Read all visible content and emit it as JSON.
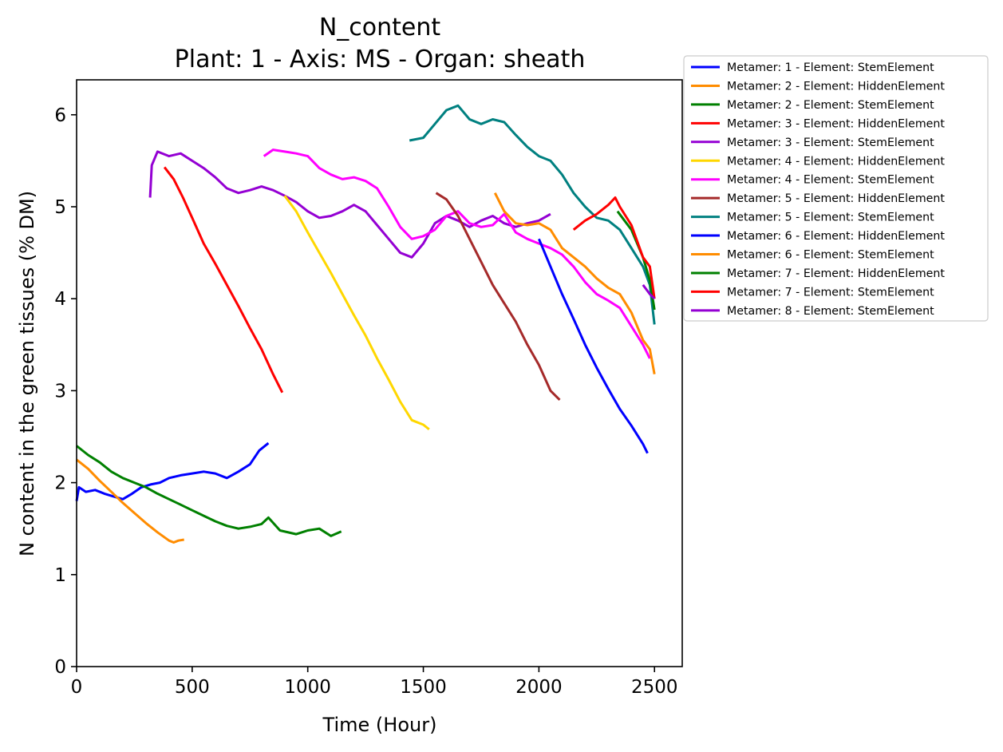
{
  "chart_data": {
    "type": "line",
    "title": "N_content",
    "subtitle": "Plant: 1 - Axis: MS - Organ: sheath",
    "xlabel": "Time (Hour)",
    "ylabel": "N content in the green tissues (% DM)",
    "xlim": [
      0,
      2620
    ],
    "ylim": [
      0,
      6.38
    ],
    "xticks": [
      0,
      500,
      1000,
      1500,
      2000,
      2500
    ],
    "yticks": [
      0,
      1,
      2,
      3,
      4,
      5,
      6
    ],
    "grid": false,
    "legend_position": "outside-right-top",
    "series": [
      {
        "name": "Metamer: 1 - Element: StemElement",
        "color": "#0000ff",
        "points": [
          [
            0,
            1.8
          ],
          [
            10,
            1.95
          ],
          [
            40,
            1.9
          ],
          [
            80,
            1.92
          ],
          [
            120,
            1.88
          ],
          [
            160,
            1.85
          ],
          [
            200,
            1.82
          ],
          [
            240,
            1.88
          ],
          [
            280,
            1.95
          ],
          [
            320,
            1.98
          ],
          [
            360,
            2.0
          ],
          [
            400,
            2.05
          ],
          [
            450,
            2.08
          ],
          [
            500,
            2.1
          ],
          [
            550,
            2.12
          ],
          [
            600,
            2.1
          ],
          [
            650,
            2.05
          ],
          [
            700,
            2.12
          ],
          [
            750,
            2.2
          ],
          [
            790,
            2.35
          ],
          [
            830,
            2.43
          ]
        ]
      },
      {
        "name": "Metamer: 2 - Element: HiddenElement",
        "color": "#ff8c00",
        "points": [
          [
            0,
            2.25
          ],
          [
            50,
            2.15
          ],
          [
            100,
            2.02
          ],
          [
            150,
            1.9
          ],
          [
            200,
            1.78
          ],
          [
            250,
            1.67
          ],
          [
            300,
            1.56
          ],
          [
            350,
            1.46
          ],
          [
            400,
            1.37
          ],
          [
            420,
            1.35
          ],
          [
            440,
            1.37
          ],
          [
            465,
            1.38
          ]
        ]
      },
      {
        "name": "Metamer: 2 - Element: StemElement",
        "color": "#008000",
        "points": [
          [
            0,
            2.4
          ],
          [
            50,
            2.3
          ],
          [
            100,
            2.22
          ],
          [
            150,
            2.12
          ],
          [
            200,
            2.05
          ],
          [
            250,
            2.0
          ],
          [
            300,
            1.95
          ],
          [
            350,
            1.88
          ],
          [
            400,
            1.82
          ],
          [
            450,
            1.76
          ],
          [
            500,
            1.7
          ],
          [
            550,
            1.64
          ],
          [
            600,
            1.58
          ],
          [
            650,
            1.53
          ],
          [
            700,
            1.5
          ],
          [
            750,
            1.52
          ],
          [
            800,
            1.55
          ],
          [
            830,
            1.62
          ],
          [
            880,
            1.48
          ],
          [
            950,
            1.44
          ],
          [
            1000,
            1.48
          ],
          [
            1050,
            1.5
          ],
          [
            1100,
            1.42
          ],
          [
            1145,
            1.47
          ]
        ]
      },
      {
        "name": "Metamer: 3 - Element: HiddenElement",
        "color": "#ff0000",
        "points": [
          [
            380,
            5.43
          ],
          [
            420,
            5.3
          ],
          [
            460,
            5.1
          ],
          [
            500,
            4.88
          ],
          [
            550,
            4.6
          ],
          [
            600,
            4.38
          ],
          [
            650,
            4.15
          ],
          [
            700,
            3.92
          ],
          [
            750,
            3.68
          ],
          [
            800,
            3.45
          ],
          [
            850,
            3.18
          ],
          [
            890,
            2.98
          ]
        ]
      },
      {
        "name": "Metamer: 3 - Element: StemElement",
        "color": "#9400d3",
        "points": [
          [
            318,
            5.1
          ],
          [
            325,
            5.45
          ],
          [
            350,
            5.6
          ],
          [
            400,
            5.55
          ],
          [
            450,
            5.58
          ],
          [
            500,
            5.5
          ],
          [
            550,
            5.42
          ],
          [
            600,
            5.32
          ],
          [
            650,
            5.2
          ],
          [
            700,
            5.15
          ],
          [
            750,
            5.18
          ],
          [
            800,
            5.22
          ],
          [
            850,
            5.18
          ],
          [
            900,
            5.12
          ],
          [
            950,
            5.05
          ],
          [
            1000,
            4.95
          ],
          [
            1050,
            4.88
          ],
          [
            1100,
            4.9
          ],
          [
            1150,
            4.95
          ],
          [
            1200,
            5.02
          ],
          [
            1250,
            4.95
          ],
          [
            1300,
            4.8
          ],
          [
            1350,
            4.65
          ],
          [
            1400,
            4.5
          ],
          [
            1450,
            4.45
          ],
          [
            1500,
            4.6
          ],
          [
            1550,
            4.82
          ],
          [
            1600,
            4.9
          ],
          [
            1650,
            4.85
          ],
          [
            1700,
            4.78
          ],
          [
            1750,
            4.85
          ],
          [
            1800,
            4.9
          ],
          [
            1850,
            4.82
          ],
          [
            1900,
            4.78
          ],
          [
            1950,
            4.82
          ],
          [
            2000,
            4.85
          ],
          [
            2050,
            4.92
          ]
        ]
      },
      {
        "name": "Metamer: 4 - Element: HiddenElement",
        "color": "#ffd700",
        "points": [
          [
            900,
            5.12
          ],
          [
            950,
            4.95
          ],
          [
            1000,
            4.72
          ],
          [
            1050,
            4.5
          ],
          [
            1100,
            4.28
          ],
          [
            1150,
            4.05
          ],
          [
            1200,
            3.82
          ],
          [
            1250,
            3.6
          ],
          [
            1300,
            3.35
          ],
          [
            1350,
            3.12
          ],
          [
            1400,
            2.88
          ],
          [
            1450,
            2.68
          ],
          [
            1500,
            2.63
          ],
          [
            1525,
            2.58
          ]
        ]
      },
      {
        "name": "Metamer: 4 - Element: StemElement",
        "color": "#ff00ff",
        "points": [
          [
            810,
            5.55
          ],
          [
            850,
            5.62
          ],
          [
            900,
            5.6
          ],
          [
            950,
            5.58
          ],
          [
            1000,
            5.55
          ],
          [
            1050,
            5.42
          ],
          [
            1100,
            5.35
          ],
          [
            1150,
            5.3
          ],
          [
            1200,
            5.32
          ],
          [
            1250,
            5.28
          ],
          [
            1300,
            5.2
          ],
          [
            1350,
            5.0
          ],
          [
            1400,
            4.78
          ],
          [
            1450,
            4.65
          ],
          [
            1500,
            4.68
          ],
          [
            1550,
            4.75
          ],
          [
            1600,
            4.9
          ],
          [
            1650,
            4.95
          ],
          [
            1700,
            4.82
          ],
          [
            1750,
            4.78
          ],
          [
            1800,
            4.8
          ],
          [
            1850,
            4.92
          ],
          [
            1900,
            4.72
          ],
          [
            1950,
            4.65
          ],
          [
            2000,
            4.6
          ],
          [
            2050,
            4.55
          ],
          [
            2100,
            4.48
          ],
          [
            2150,
            4.35
          ],
          [
            2200,
            4.18
          ],
          [
            2250,
            4.05
          ],
          [
            2300,
            3.98
          ],
          [
            2350,
            3.9
          ],
          [
            2400,
            3.7
          ],
          [
            2450,
            3.5
          ],
          [
            2480,
            3.35
          ]
        ]
      },
      {
        "name": "Metamer: 5 - Element: HiddenElement",
        "color": "#a52a2a",
        "points": [
          [
            1555,
            5.15
          ],
          [
            1600,
            5.08
          ],
          [
            1650,
            4.9
          ],
          [
            1700,
            4.65
          ],
          [
            1750,
            4.4
          ],
          [
            1800,
            4.15
          ],
          [
            1850,
            3.95
          ],
          [
            1900,
            3.75
          ],
          [
            1950,
            3.5
          ],
          [
            2000,
            3.28
          ],
          [
            2050,
            3.0
          ],
          [
            2090,
            2.9
          ]
        ]
      },
      {
        "name": "Metamer: 5 - Element: StemElement",
        "color": "#008080",
        "points": [
          [
            1440,
            5.72
          ],
          [
            1500,
            5.75
          ],
          [
            1550,
            5.9
          ],
          [
            1600,
            6.05
          ],
          [
            1650,
            6.1
          ],
          [
            1700,
            5.95
          ],
          [
            1750,
            5.9
          ],
          [
            1800,
            5.95
          ],
          [
            1850,
            5.92
          ],
          [
            1900,
            5.78
          ],
          [
            1950,
            5.65
          ],
          [
            2000,
            5.55
          ],
          [
            2050,
            5.5
          ],
          [
            2100,
            5.35
          ],
          [
            2150,
            5.15
          ],
          [
            2200,
            5.0
          ],
          [
            2250,
            4.88
          ],
          [
            2300,
            4.85
          ],
          [
            2350,
            4.75
          ],
          [
            2400,
            4.55
          ],
          [
            2450,
            4.35
          ],
          [
            2480,
            4.15
          ],
          [
            2500,
            3.72
          ]
        ]
      },
      {
        "name": "Metamer: 6 - Element: HiddenElement",
        "color": "#0000ff",
        "points": [
          [
            2000,
            4.65
          ],
          [
            2050,
            4.35
          ],
          [
            2100,
            4.05
          ],
          [
            2150,
            3.78
          ],
          [
            2200,
            3.5
          ],
          [
            2250,
            3.25
          ],
          [
            2300,
            3.02
          ],
          [
            2350,
            2.8
          ],
          [
            2400,
            2.62
          ],
          [
            2450,
            2.42
          ],
          [
            2470,
            2.32
          ]
        ]
      },
      {
        "name": "Metamer: 6 - Element: StemElement",
        "color": "#ff8c00",
        "points": [
          [
            1810,
            5.15
          ],
          [
            1850,
            4.95
          ],
          [
            1900,
            4.82
          ],
          [
            1950,
            4.8
          ],
          [
            2000,
            4.82
          ],
          [
            2050,
            4.75
          ],
          [
            2100,
            4.55
          ],
          [
            2150,
            4.45
          ],
          [
            2200,
            4.35
          ],
          [
            2250,
            4.22
          ],
          [
            2300,
            4.12
          ],
          [
            2350,
            4.05
          ],
          [
            2400,
            3.85
          ],
          [
            2450,
            3.55
          ],
          [
            2480,
            3.45
          ],
          [
            2500,
            3.18
          ]
        ]
      },
      {
        "name": "Metamer: 7 - Element: HiddenElement",
        "color": "#008000",
        "points": [
          [
            2340,
            4.95
          ],
          [
            2400,
            4.75
          ],
          [
            2450,
            4.45
          ],
          [
            2480,
            4.2
          ],
          [
            2500,
            3.88
          ]
        ]
      },
      {
        "name": "Metamer: 7 - Element: StemElement",
        "color": "#ff0000",
        "points": [
          [
            2150,
            4.75
          ],
          [
            2200,
            4.85
          ],
          [
            2250,
            4.92
          ],
          [
            2300,
            5.02
          ],
          [
            2330,
            5.1
          ],
          [
            2350,
            5.0
          ],
          [
            2400,
            4.8
          ],
          [
            2450,
            4.45
          ],
          [
            2480,
            4.35
          ],
          [
            2500,
            4.0
          ]
        ]
      },
      {
        "name": "Metamer: 8 - Element: StemElement",
        "color": "#9400d3",
        "points": [
          [
            2450,
            4.15
          ],
          [
            2480,
            4.05
          ],
          [
            2500,
            4.0
          ]
        ]
      }
    ]
  }
}
